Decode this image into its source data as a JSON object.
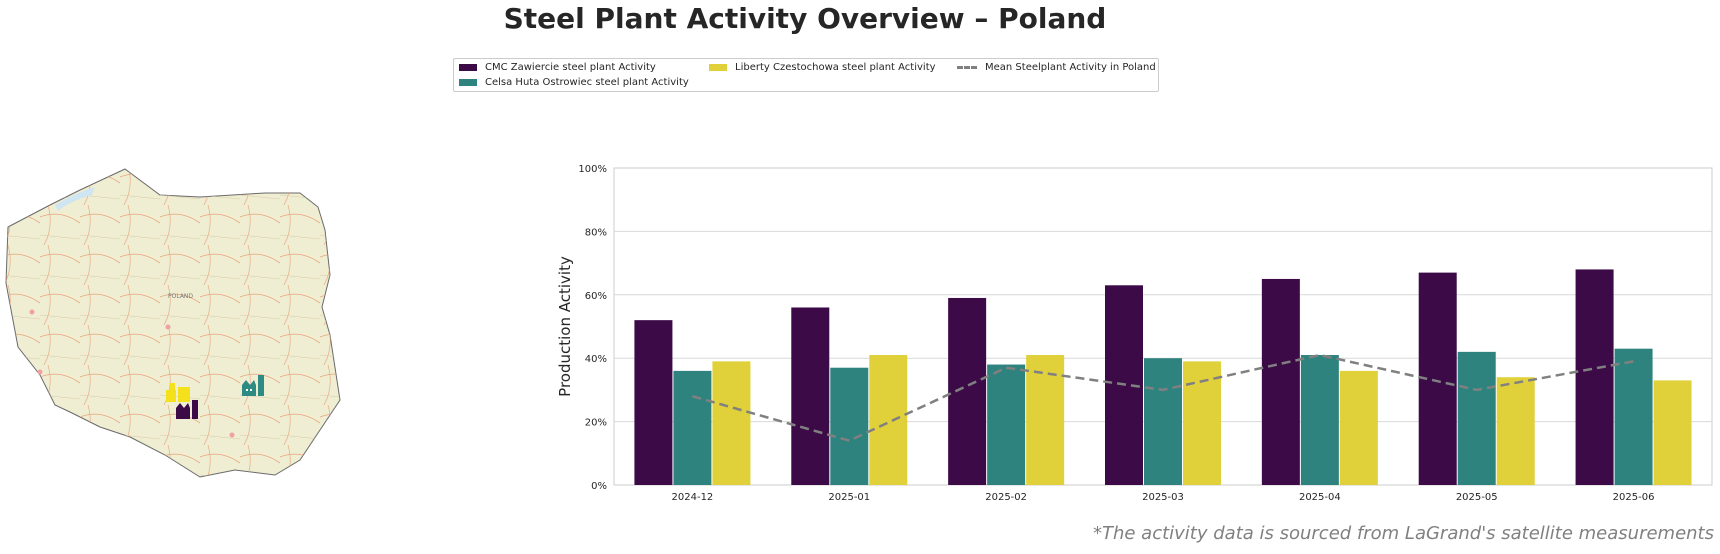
{
  "title": "Steel Plant Activity Overview – Poland",
  "footnote": "*The activity data is sourced from LaGrand's satellite measurements",
  "legend": [
    {
      "label": "CMC Zawiercie steel plant Activity",
      "color": "#3b0a47",
      "kind": "bar"
    },
    {
      "label": "Celsa Huta Ostrowiec steel plant Activity",
      "color": "#2e837e",
      "kind": "bar"
    },
    {
      "label": "Liberty Czestochowa steel plant Activity",
      "color": "#e0d13a",
      "kind": "bar"
    },
    {
      "label": "Mean Steelplant Activity in Poland",
      "color": "#808080",
      "kind": "line"
    }
  ],
  "map": {
    "labels": [
      "POLAND"
    ],
    "plant_icons": [
      {
        "name": "liberty-plant-icon",
        "color": "#f5e11b"
      },
      {
        "name": "cmc-plant-icon",
        "color": "#3b0a47"
      },
      {
        "name": "celsa-plant-icon",
        "color": "#2e8b84"
      }
    ]
  },
  "chart_data": {
    "type": "bar",
    "categories": [
      "2024-12",
      "2025-01",
      "2025-02",
      "2025-03",
      "2025-04",
      "2025-05",
      "2025-06"
    ],
    "series": [
      {
        "name": "CMC Zawiercie steel plant Activity",
        "color": "#3b0a47",
        "values": [
          52,
          56,
          59,
          63,
          65,
          67,
          68
        ]
      },
      {
        "name": "Celsa Huta Ostrowiec steel plant Activity",
        "color": "#2e837e",
        "values": [
          36,
          37,
          38,
          40,
          41,
          42,
          43
        ]
      },
      {
        "name": "Liberty Czestochowa steel plant Activity",
        "color": "#e0d13a",
        "values": [
          39,
          41,
          41,
          39,
          36,
          34,
          33
        ]
      }
    ],
    "line": {
      "name": "Mean Steelplant Activity in Poland",
      "color": "#808080",
      "style": "dashed",
      "values": [
        28,
        14,
        37,
        30,
        41,
        30,
        39
      ]
    },
    "ylabel": "Production Activity",
    "xlabel": "",
    "ylim": [
      0,
      100
    ],
    "yticks": [
      "0%",
      "20%",
      "40%",
      "60%",
      "80%",
      "100%"
    ],
    "grid": true,
    "legend_position": "top-center"
  }
}
